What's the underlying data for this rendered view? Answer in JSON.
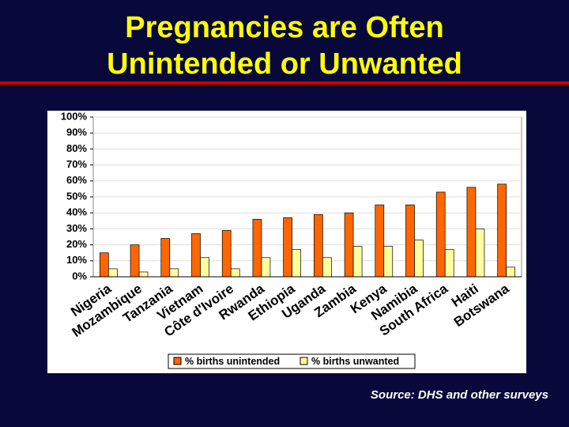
{
  "chart_data": {
    "type": "bar",
    "title": "Pregnancies are Often Unintended or Unwanted",
    "source": "Source: DHS and other surveys",
    "categories": [
      "Nigeria",
      "Mozambique",
      "Tanzania",
      "Vietnam",
      "Côte d'Ivoire",
      "Rwanda",
      "Ethiopia",
      "Uganda",
      "Zambia",
      "Kenya",
      "Namibia",
      "South Africa",
      "Haiti",
      "Botswana"
    ],
    "series": [
      {
        "name": "% births unintended",
        "color": "#ff6600",
        "values": [
          15,
          20,
          24,
          27,
          29,
          36,
          37,
          39,
          40,
          45,
          45,
          53,
          56,
          58
        ]
      },
      {
        "name": "% births unwanted",
        "color": "#ffffa0",
        "values": [
          5,
          3,
          5,
          12,
          5,
          12,
          17,
          12,
          19,
          19,
          23,
          17,
          30,
          6
        ]
      }
    ],
    "ylim": [
      0,
      100
    ],
    "yticks": [
      {
        "value": 0,
        "label": "0%"
      },
      {
        "value": 10,
        "label": "10%"
      },
      {
        "value": 20,
        "label": "20%"
      },
      {
        "value": 30,
        "label": "30%"
      },
      {
        "value": 40,
        "label": "40%"
      },
      {
        "value": 50,
        "label": "50%"
      },
      {
        "value": 60,
        "label": "60%"
      },
      {
        "value": 70,
        "label": "70%"
      },
      {
        "value": 80,
        "label": "80%"
      },
      {
        "value": 90,
        "label": "90%"
      },
      {
        "value": 100,
        "label": "100%"
      }
    ],
    "grid": true
  }
}
